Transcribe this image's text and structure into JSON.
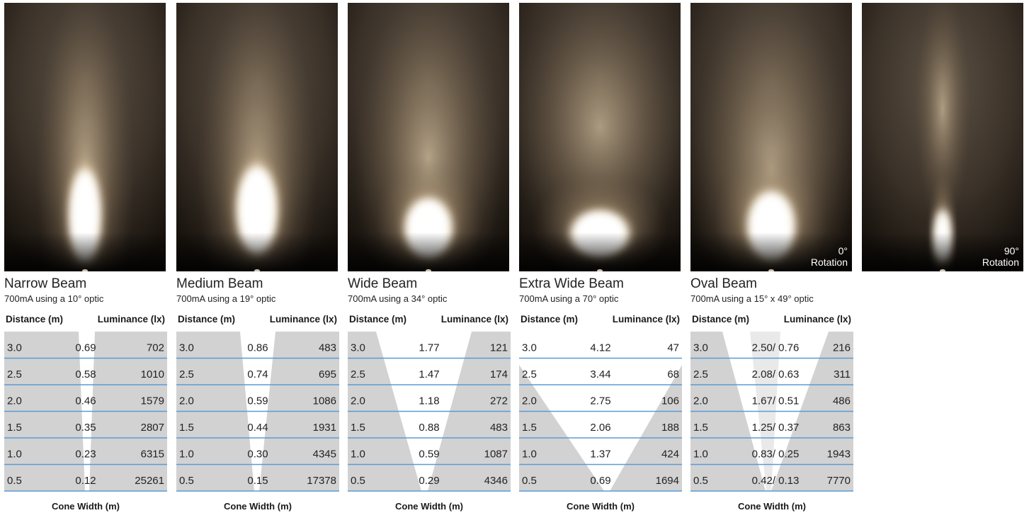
{
  "photos": [
    {
      "style": "narrow"
    },
    {
      "style": "medium"
    },
    {
      "style": "wide"
    },
    {
      "style": "extrawide"
    },
    {
      "style": "oval0",
      "rotation_angle": "0°",
      "rotation_label": "Rotation"
    },
    {
      "style": "oval90",
      "rotation_angle": "90°",
      "rotation_label": "Rotation"
    }
  ],
  "labels": {
    "distance_header": "Distance (m)",
    "luminance_header": "Luminance (lx)",
    "cone_width": "Cone Width (m)"
  },
  "colors": {
    "cone_fill": "#d2d2d2",
    "cone_fill_light": "#e9e9e9",
    "row_line": "#5b9bd5"
  },
  "chart_data": [
    {
      "type": "table",
      "title": "Narrow Beam",
      "subtitle": "700mA using a 10° optic",
      "columns": [
        "Distance (m)",
        "Cone Width (m)",
        "Luminance (lx)"
      ],
      "rows": [
        {
          "distance": "3.0",
          "cone": "0.69",
          "lux": "702"
        },
        {
          "distance": "2.5",
          "cone": "0.58",
          "lux": "1010"
        },
        {
          "distance": "2.0",
          "cone": "0.46",
          "lux": "1579"
        },
        {
          "distance": "1.5",
          "cone": "0.35",
          "lux": "2807"
        },
        {
          "distance": "1.0",
          "cone": "0.23",
          "lux": "6315"
        },
        {
          "distance": "0.5",
          "cone": "0.12",
          "lux": "25261"
        }
      ]
    },
    {
      "type": "table",
      "title": "Medium Beam",
      "subtitle": "700mA using a 19° optic",
      "columns": [
        "Distance (m)",
        "Cone Width (m)",
        "Luminance (lx)"
      ],
      "rows": [
        {
          "distance": "3.0",
          "cone": "0.86",
          "lux": "483"
        },
        {
          "distance": "2.5",
          "cone": "0.74",
          "lux": "695"
        },
        {
          "distance": "2.0",
          "cone": "0.59",
          "lux": "1086"
        },
        {
          "distance": "1.5",
          "cone": "0.44",
          "lux": "1931"
        },
        {
          "distance": "1.0",
          "cone": "0.30",
          "lux": "4345"
        },
        {
          "distance": "0.5",
          "cone": "0.15",
          "lux": "17378"
        }
      ]
    },
    {
      "type": "table",
      "title": "Wide Beam",
      "subtitle": "700mA using a 34° optic",
      "columns": [
        "Distance (m)",
        "Cone Width (m)",
        "Luminance (lx)"
      ],
      "rows": [
        {
          "distance": "3.0",
          "cone": "1.77",
          "lux": "121"
        },
        {
          "distance": "2.5",
          "cone": "1.47",
          "lux": "174"
        },
        {
          "distance": "2.0",
          "cone": "1.18",
          "lux": "272"
        },
        {
          "distance": "1.5",
          "cone": "0.88",
          "lux": "483"
        },
        {
          "distance": "1.0",
          "cone": "0.59",
          "lux": "1087"
        },
        {
          "distance": "0.5",
          "cone": "0.29",
          "lux": "4346"
        }
      ]
    },
    {
      "type": "table",
      "title": "Extra Wide Beam",
      "subtitle": "700mA using a 70° optic",
      "columns": [
        "Distance (m)",
        "Cone Width (m)",
        "Luminance (lx)"
      ],
      "rows": [
        {
          "distance": "3.0",
          "cone": "4.12",
          "lux": "47"
        },
        {
          "distance": "2.5",
          "cone": "3.44",
          "lux": "68"
        },
        {
          "distance": "2.0",
          "cone": "2.75",
          "lux": "106"
        },
        {
          "distance": "1.5",
          "cone": "2.06",
          "lux": "188"
        },
        {
          "distance": "1.0",
          "cone": "1.37",
          "lux": "424"
        },
        {
          "distance": "0.5",
          "cone": "0.69",
          "lux": "1694"
        }
      ]
    },
    {
      "type": "table",
      "title": "Oval Beam",
      "subtitle": "700mA using a 15° x 49° optic",
      "columns": [
        "Distance (m)",
        "Cone Width (m)",
        "Luminance (lx)"
      ],
      "rows": [
        {
          "distance": "3.0",
          "cone": "2.50/ 0.76",
          "lux": "216"
        },
        {
          "distance": "2.5",
          "cone": "2.08/ 0.63",
          "lux": "311"
        },
        {
          "distance": "2.0",
          "cone": "1.67/ 0.51",
          "lux": "486"
        },
        {
          "distance": "1.5",
          "cone": "1.25/ 0.37",
          "lux": "863"
        },
        {
          "distance": "1.0",
          "cone": "0.83/ 0.25",
          "lux": "1943"
        },
        {
          "distance": "0.5",
          "cone": "0.42/ 0.13",
          "lux": "7770"
        }
      ]
    }
  ]
}
